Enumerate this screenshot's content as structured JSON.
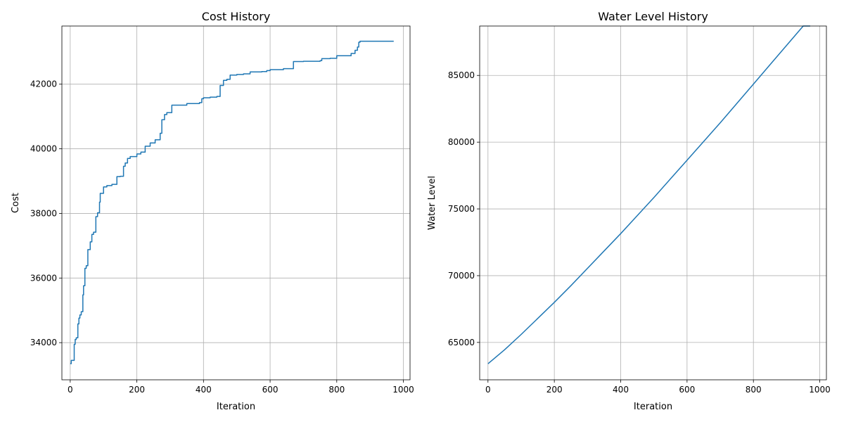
{
  "chart_data": [
    {
      "type": "line",
      "title": "Cost History",
      "xlabel": "Iteration",
      "ylabel": "Cost",
      "xlim": [
        -25,
        1020
      ],
      "ylim": [
        32850,
        43800
      ],
      "xticks": [
        0,
        200,
        400,
        600,
        800,
        1000
      ],
      "yticks": [
        34000,
        36000,
        38000,
        40000,
        42000
      ],
      "grid": true,
      "color": "#1f77b4",
      "series": [
        {
          "step": true,
          "x": [
            0,
            3,
            12,
            15,
            18,
            23,
            26,
            29,
            33,
            38,
            40,
            44,
            48,
            53,
            60,
            65,
            70,
            77,
            82,
            88,
            90,
            100,
            110,
            125,
            140,
            150,
            160,
            165,
            172,
            180,
            200,
            212,
            225,
            240,
            255,
            270,
            275,
            283,
            290,
            305,
            350,
            388,
            395,
            400,
            420,
            440,
            450,
            460,
            470,
            480,
            500,
            520,
            540,
            575,
            590,
            600,
            640,
            670,
            700,
            750,
            755,
            780,
            800,
            843,
            855,
            862,
            866,
            870,
            880,
            971
          ],
          "y": [
            33350,
            33450,
            33950,
            34100,
            34150,
            34580,
            34760,
            34860,
            34960,
            35480,
            35760,
            36300,
            36380,
            36880,
            37120,
            37350,
            37420,
            37900,
            38020,
            38350,
            38620,
            38820,
            38860,
            38900,
            39140,
            39150,
            39460,
            39560,
            39700,
            39760,
            39840,
            39900,
            40080,
            40180,
            40280,
            40480,
            40900,
            41060,
            41120,
            41350,
            41400,
            41430,
            41550,
            41580,
            41600,
            41620,
            41960,
            42120,
            42150,
            42280,
            42300,
            42320,
            42380,
            42390,
            42420,
            42450,
            42480,
            42700,
            42710,
            42730,
            42790,
            42800,
            42880,
            42950,
            43050,
            43150,
            43300,
            43330,
            43330,
            43330
          ]
        }
      ]
    },
    {
      "type": "line",
      "title": "Water Level History",
      "xlabel": "Iteration",
      "ylabel": "Water Level",
      "xlim": [
        -25,
        1020
      ],
      "ylim": [
        62200,
        88700
      ],
      "xticks": [
        0,
        200,
        400,
        600,
        800,
        1000
      ],
      "yticks": [
        65000,
        70000,
        75000,
        80000,
        85000
      ],
      "grid": true,
      "color": "#1f77b4",
      "series": [
        {
          "step": false,
          "x": [
            0,
            50,
            100,
            150,
            200,
            250,
            300,
            350,
            400,
            450,
            500,
            550,
            600,
            650,
            700,
            750,
            800,
            850,
            900,
            950,
            971
          ],
          "y": [
            63400,
            64450,
            65600,
            66800,
            68000,
            69250,
            70550,
            71850,
            73150,
            74500,
            75850,
            77250,
            78650,
            80050,
            81450,
            82900,
            84350,
            85800,
            87250,
            88700,
            88700
          ]
        }
      ]
    }
  ]
}
